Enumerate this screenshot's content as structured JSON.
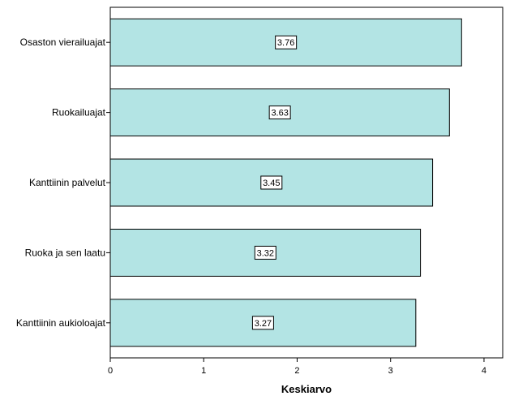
{
  "chart_data": {
    "type": "bar",
    "orientation": "horizontal",
    "categories": [
      "Osaston vierailuajat",
      "Ruokailuajat",
      "Kanttiinin palvelut",
      "Ruoka ja sen laatu",
      "Kanttiinin aukioloajat"
    ],
    "values": [
      3.76,
      3.63,
      3.45,
      3.32,
      3.27
    ],
    "value_labels": [
      "3.76",
      "3.63",
      "3.45",
      "3.32",
      "3.27"
    ],
    "xlabel": "Keskiarvo",
    "xlim": [
      0,
      4.2
    ],
    "xticks": [
      "0",
      "1",
      "2",
      "3",
      "4"
    ],
    "bar_color": "#b3e4e4",
    "grid": false
  }
}
